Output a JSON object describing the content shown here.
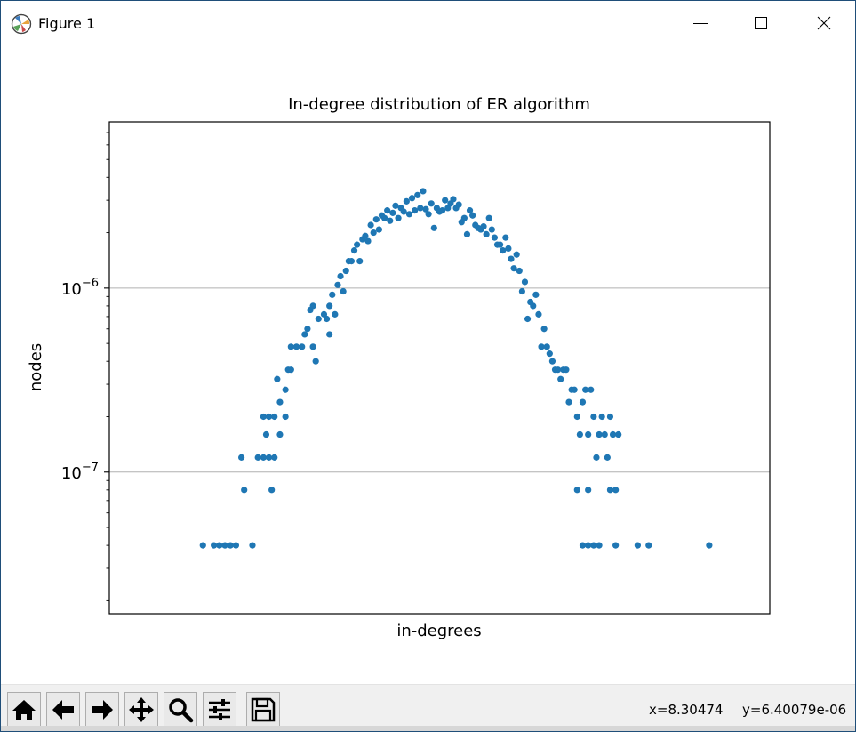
{
  "window": {
    "title": "Figure 1",
    "minimize_icon": "minimize-icon",
    "maximize_icon": "maximize-icon",
    "close_icon": "close-icon"
  },
  "toolbar": {
    "buttons": [
      "home-icon",
      "back-arrow-icon",
      "forward-arrow-icon",
      "pan-icon",
      "zoom-icon",
      "configure-subplots-icon",
      "save-icon"
    ],
    "x_readout": "x=8.30474",
    "y_readout": "y=6.40079e-06"
  },
  "colors": {
    "marker": "#1f77b4",
    "grid": "#b0b0b0"
  },
  "chart_data": {
    "type": "scatter",
    "title": "In-degree distribution of ER algorithm",
    "xlabel": "in-degrees",
    "ylabel": "nodes",
    "y_scale": "log",
    "ylim": [
      1.7e-08,
      8e-06
    ],
    "xlim": [
      0,
      120
    ],
    "x_ticks_visible": false,
    "y_tick_labels": [
      {
        "value": 1e-06,
        "mantissa": "10",
        "exponent": "−6"
      },
      {
        "value": 1e-07,
        "mantissa": "10",
        "exponent": "−7"
      }
    ],
    "grid": "horizontal major",
    "legend": "none",
    "series": [
      {
        "points": [
          [
            17,
            4e-08
          ],
          [
            19,
            4e-08
          ],
          [
            20,
            4e-08
          ],
          [
            21,
            4e-08
          ],
          [
            22,
            4e-08
          ],
          [
            23,
            4e-08
          ],
          [
            26,
            4e-08
          ],
          [
            24,
            1.2e-07
          ],
          [
            24.5,
            8e-08
          ],
          [
            27,
            1.2e-07
          ],
          [
            28,
            1.2e-07
          ],
          [
            28,
            2e-07
          ],
          [
            28.5,
            1.6e-07
          ],
          [
            29,
            1.2e-07
          ],
          [
            29,
            2e-07
          ],
          [
            29.5,
            8e-08
          ],
          [
            30,
            1.2e-07
          ],
          [
            30,
            2e-07
          ],
          [
            30.5,
            3.2e-07
          ],
          [
            31,
            2.4e-07
          ],
          [
            31,
            1.6e-07
          ],
          [
            32,
            2e-07
          ],
          [
            32,
            2.8e-07
          ],
          [
            32.5,
            3.6e-07
          ],
          [
            33,
            4.8e-07
          ],
          [
            33,
            3.6e-07
          ],
          [
            34,
            4.8e-07
          ],
          [
            35,
            4.8e-07
          ],
          [
            35.5,
            5.6e-07
          ],
          [
            36,
            6e-07
          ],
          [
            36.5,
            7.6e-07
          ],
          [
            37,
            8e-07
          ],
          [
            37,
            4.8e-07
          ],
          [
            37.5,
            4e-07
          ],
          [
            38,
            6.8e-07
          ],
          [
            39,
            7.2e-07
          ],
          [
            39.5,
            6.8e-07
          ],
          [
            40,
            8e-07
          ],
          [
            40,
            5.6e-07
          ],
          [
            40.5,
            9.2e-07
          ],
          [
            41,
            7.2e-07
          ],
          [
            41.5,
            1.04e-06
          ],
          [
            42,
            1.16e-06
          ],
          [
            42.5,
            9.6e-07
          ],
          [
            43,
            1.24e-06
          ],
          [
            43.5,
            1.4e-06
          ],
          [
            44,
            1.4e-06
          ],
          [
            44.5,
            1.6e-06
          ],
          [
            45,
            1.72e-06
          ],
          [
            45.5,
            1.4e-06
          ],
          [
            46,
            1.84e-06
          ],
          [
            46.5,
            1.92e-06
          ],
          [
            47,
            1.8e-06
          ],
          [
            47.5,
            2.2e-06
          ],
          [
            48,
            2e-06
          ],
          [
            48.5,
            2.36e-06
          ],
          [
            49,
            2.08e-06
          ],
          [
            49.5,
            2.48e-06
          ],
          [
            50,
            2.4e-06
          ],
          [
            50.5,
            2.64e-06
          ],
          [
            51,
            2.32e-06
          ],
          [
            51.5,
            2.56e-06
          ],
          [
            52,
            2.8e-06
          ],
          [
            52.5,
            2.4e-06
          ],
          [
            53,
            2.72e-06
          ],
          [
            53.5,
            2.6e-06
          ],
          [
            54,
            2.96e-06
          ],
          [
            54.5,
            2.52e-06
          ],
          [
            55,
            3.08e-06
          ],
          [
            55.5,
            2.64e-06
          ],
          [
            56,
            3.2e-06
          ],
          [
            56.5,
            2.72e-06
          ],
          [
            57,
            3.36e-06
          ],
          [
            57.5,
            2.68e-06
          ],
          [
            58,
            2.52e-06
          ],
          [
            58.5,
            2.88e-06
          ],
          [
            59,
            2.12e-06
          ],
          [
            59.5,
            2.72e-06
          ],
          [
            60,
            2.6e-06
          ],
          [
            60.5,
            2.64e-06
          ],
          [
            61,
            3e-06
          ],
          [
            61.5,
            2.72e-06
          ],
          [
            62,
            2.88e-06
          ],
          [
            62.5,
            3.04e-06
          ],
          [
            63,
            2.72e-06
          ],
          [
            63.5,
            2.84e-06
          ],
          [
            64,
            2.28e-06
          ],
          [
            64.5,
            2.4e-06
          ],
          [
            65,
            1.96e-06
          ],
          [
            65.5,
            2.64e-06
          ],
          [
            66,
            2.48e-06
          ],
          [
            66.5,
            2.2e-06
          ],
          [
            67,
            2.12e-06
          ],
          [
            67.5,
            2.08e-06
          ],
          [
            68,
            2.16e-06
          ],
          [
            68.5,
            1.96e-06
          ],
          [
            69,
            2.4e-06
          ],
          [
            69.5,
            2.08e-06
          ],
          [
            70,
            1.88e-06
          ],
          [
            70.5,
            1.72e-06
          ],
          [
            71,
            1.72e-06
          ],
          [
            71.5,
            1.6e-06
          ],
          [
            72,
            1.88e-06
          ],
          [
            72.5,
            1.64e-06
          ],
          [
            73,
            1.44e-06
          ],
          [
            73.5,
            1.28e-06
          ],
          [
            74,
            1.52e-06
          ],
          [
            74.5,
            1.24e-06
          ],
          [
            75,
            9.6e-07
          ],
          [
            75.5,
            1.08e-06
          ],
          [
            76,
            6.8e-07
          ],
          [
            76.5,
            8.4e-07
          ],
          [
            77,
            8e-07
          ],
          [
            77.5,
            9.2e-07
          ],
          [
            78,
            7.2e-07
          ],
          [
            78.5,
            4.8e-07
          ],
          [
            79,
            6e-07
          ],
          [
            79.5,
            4.8e-07
          ],
          [
            80,
            4.4e-07
          ],
          [
            80.5,
            4e-07
          ],
          [
            81,
            3.6e-07
          ],
          [
            81.5,
            3.6e-07
          ],
          [
            82,
            3.2e-07
          ],
          [
            82.5,
            3.6e-07
          ],
          [
            83,
            3.6e-07
          ],
          [
            83.5,
            2.4e-07
          ],
          [
            84,
            2.8e-07
          ],
          [
            84.5,
            2.8e-07
          ],
          [
            85,
            2e-07
          ],
          [
            85.5,
            1.6e-07
          ],
          [
            86,
            2.4e-07
          ],
          [
            86.5,
            2.8e-07
          ],
          [
            87,
            1.6e-07
          ],
          [
            87.5,
            2.8e-07
          ],
          [
            88,
            2e-07
          ],
          [
            88.5,
            1.2e-07
          ],
          [
            89,
            1.6e-07
          ],
          [
            89.5,
            2e-07
          ],
          [
            90,
            1.6e-07
          ],
          [
            90.5,
            1.2e-07
          ],
          [
            91,
            2e-07
          ],
          [
            91.5,
            1.6e-07
          ],
          [
            92,
            8e-08
          ],
          [
            92.5,
            1.6e-07
          ],
          [
            85,
            8e-08
          ],
          [
            87,
            8e-08
          ],
          [
            91,
            8e-08
          ],
          [
            86,
            4e-08
          ],
          [
            87,
            4e-08
          ],
          [
            88,
            4e-08
          ],
          [
            89,
            4e-08
          ],
          [
            92,
            4e-08
          ],
          [
            96,
            4e-08
          ],
          [
            98,
            4e-08
          ],
          [
            109,
            4e-08
          ]
        ]
      }
    ]
  }
}
